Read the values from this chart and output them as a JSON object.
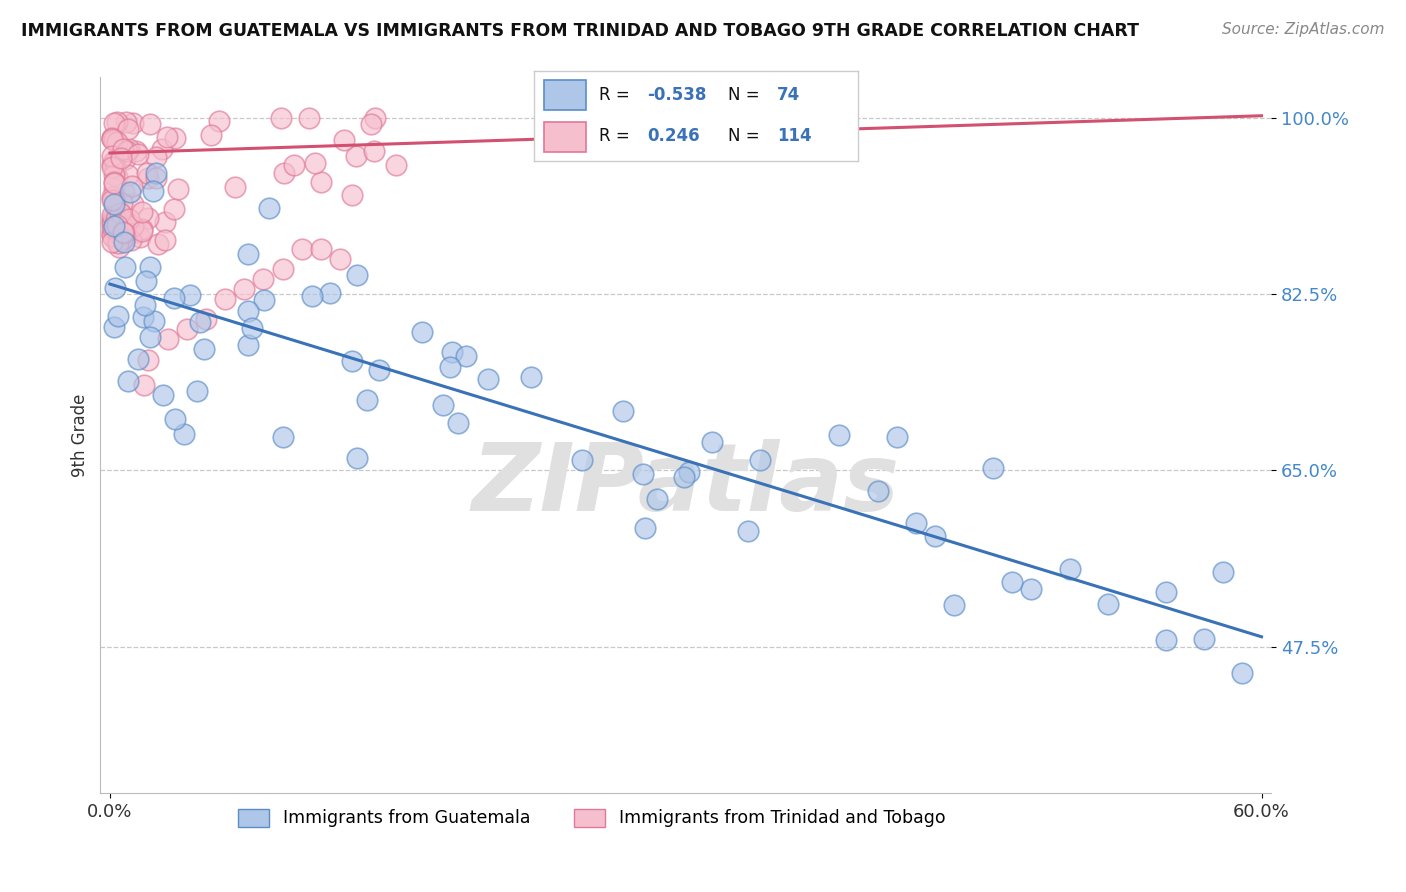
{
  "title": "IMMIGRANTS FROM GUATEMALA VS IMMIGRANTS FROM TRINIDAD AND TOBAGO 9TH GRADE CORRELATION CHART",
  "source": "Source: ZipAtlas.com",
  "xlabel_blue": "Immigrants from Guatemala",
  "xlabel_pink": "Immigrants from Trinidad and Tobago",
  "ylabel": "9th Grade",
  "watermark": "ZIPatlas",
  "xlim": [
    -0.005,
    0.605
  ],
  "ylim": [
    0.33,
    1.04
  ],
  "yticks": [
    0.475,
    0.65,
    0.825,
    1.0
  ],
  "ytick_labels": [
    "47.5%",
    "65.0%",
    "82.5%",
    "100.0%"
  ],
  "xticks": [
    0.0,
    0.6
  ],
  "xtick_labels": [
    "0.0%",
    "60.0%"
  ],
  "legend_blue_R": "-0.538",
  "legend_blue_N": "74",
  "legend_pink_R": "0.246",
  "legend_pink_N": "114",
  "blue_color": "#aec6e8",
  "blue_edge": "#5b8ec9",
  "pink_color": "#f5bfce",
  "pink_edge": "#e07898",
  "trendline_blue": "#3a72b8",
  "trendline_pink": "#d45070",
  "background": "#ffffff",
  "grid_color": "#c8c8c8",
  "blue_trend_x0": 0.0,
  "blue_trend_y0": 0.835,
  "blue_trend_x1": 0.6,
  "blue_trend_y1": 0.485,
  "pink_trend_x0": 0.0,
  "pink_trend_y0": 0.965,
  "pink_trend_x1": 0.6,
  "pink_trend_y1": 1.002
}
